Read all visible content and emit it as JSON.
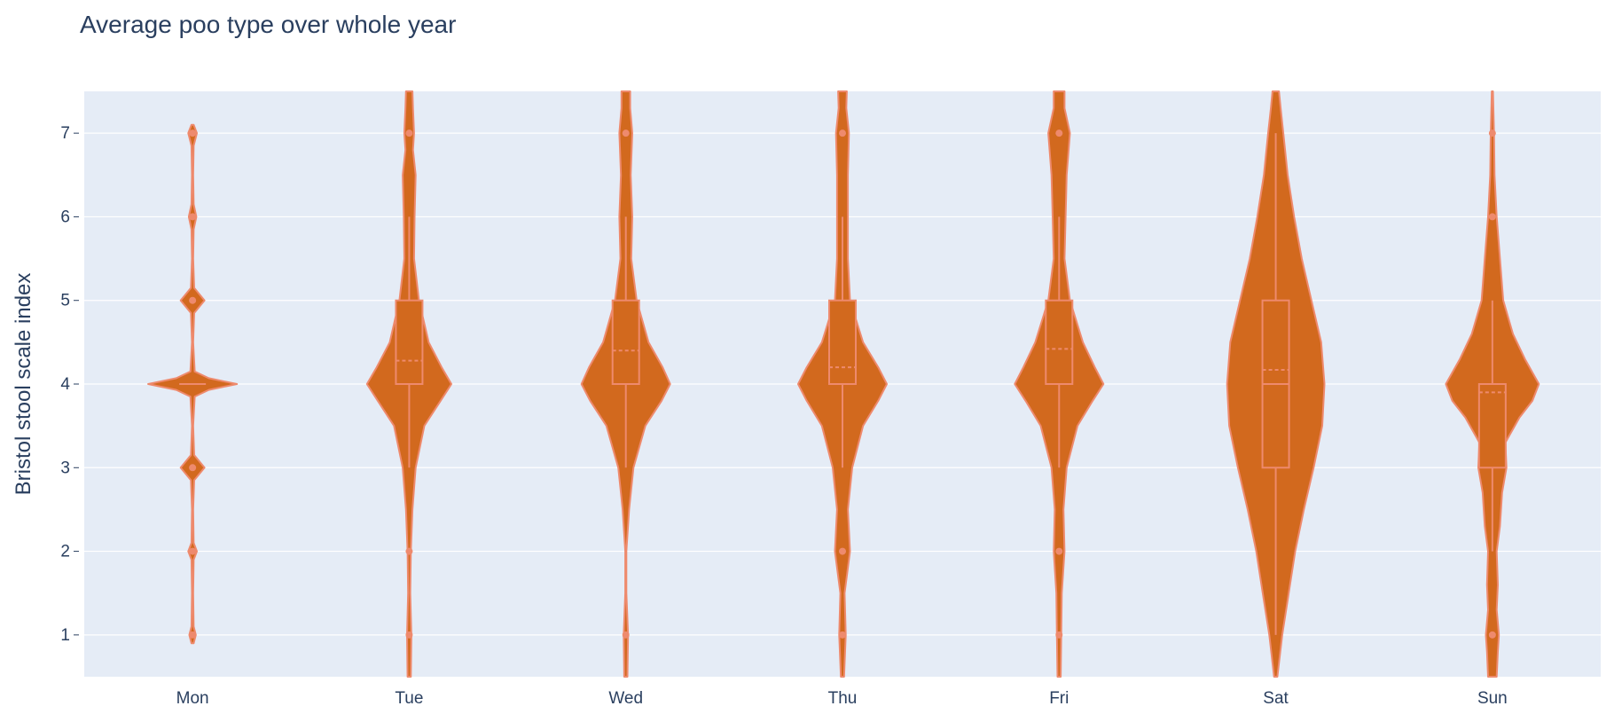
{
  "chart_data": {
    "type": "violin",
    "title": "Average poo type over whole year",
    "xlabel": "",
    "ylabel": "Bristol stool scale index",
    "categories": [
      "Mon",
      "Tue",
      "Wed",
      "Thu",
      "Fri",
      "Sat",
      "Sun"
    ],
    "ylim": [
      0.5,
      7.5
    ],
    "yticks": [
      1,
      2,
      3,
      4,
      5,
      6,
      7
    ],
    "grid": true,
    "colors": {
      "plot_bg": "#e5ecf6",
      "grid": "#ffffff",
      "violin_fill": "#d2691e",
      "violin_line": "#ee8a6d",
      "text": "#2a3f5f"
    },
    "violins": [
      {
        "name": "Mon",
        "y_range": [
          0.9,
          7.1
        ],
        "box": {
          "q1": 4,
          "median": 4,
          "q3": 4,
          "mean": 4.0,
          "whisker_low": 4,
          "whisker_high": 4
        },
        "outliers": [
          1,
          2,
          3,
          5,
          6,
          7
        ],
        "density": [
          [
            0.9,
            0.02
          ],
          [
            1.0,
            0.06
          ],
          [
            1.1,
            0.02
          ],
          [
            1.5,
            0.01
          ],
          [
            1.9,
            0.02
          ],
          [
            2.0,
            0.08
          ],
          [
            2.1,
            0.02
          ],
          [
            2.5,
            0.01
          ],
          [
            2.85,
            0.03
          ],
          [
            3.0,
            0.22
          ],
          [
            3.15,
            0.03
          ],
          [
            3.5,
            0.01
          ],
          [
            3.85,
            0.04
          ],
          [
            3.93,
            0.3
          ],
          [
            4.0,
            0.82
          ],
          [
            4.07,
            0.3
          ],
          [
            4.15,
            0.04
          ],
          [
            4.5,
            0.01
          ],
          [
            4.85,
            0.03
          ],
          [
            5.0,
            0.22
          ],
          [
            5.15,
            0.03
          ],
          [
            5.5,
            0.01
          ],
          [
            5.85,
            0.02
          ],
          [
            6.0,
            0.07
          ],
          [
            6.15,
            0.02
          ],
          [
            6.5,
            0.01
          ],
          [
            6.85,
            0.02
          ],
          [
            7.0,
            0.08
          ],
          [
            7.1,
            0.02
          ]
        ]
      },
      {
        "name": "Tue",
        "y_range": [
          0.5,
          7.5
        ],
        "box": {
          "q1": 4,
          "median": 4,
          "q3": 5,
          "mean": 4.28,
          "whisker_low": 3,
          "whisker_high": 6
        },
        "outliers": [
          1,
          2,
          7
        ],
        "density": [
          [
            0.5,
            0.03
          ],
          [
            1.0,
            0.04
          ],
          [
            1.5,
            0.02
          ],
          [
            2.0,
            0.03
          ],
          [
            2.5,
            0.06
          ],
          [
            3.0,
            0.12
          ],
          [
            3.5,
            0.28
          ],
          [
            3.8,
            0.58
          ],
          [
            4.0,
            0.78
          ],
          [
            4.2,
            0.6
          ],
          [
            4.5,
            0.36
          ],
          [
            5.0,
            0.18
          ],
          [
            5.5,
            0.09
          ],
          [
            6.0,
            0.1
          ],
          [
            6.5,
            0.12
          ],
          [
            6.8,
            0.07
          ],
          [
            7.0,
            0.09
          ],
          [
            7.3,
            0.07
          ],
          [
            7.5,
            0.06
          ]
        ]
      },
      {
        "name": "Wed",
        "y_range": [
          0.5,
          7.5
        ],
        "box": {
          "q1": 4,
          "median": 4,
          "q3": 5,
          "mean": 4.4,
          "whisker_low": 3,
          "whisker_high": 6
        },
        "outliers": [
          1,
          7
        ],
        "density": [
          [
            0.5,
            0.03
          ],
          [
            1.0,
            0.04
          ],
          [
            1.5,
            0.01
          ],
          [
            2.0,
            0.01
          ],
          [
            2.5,
            0.06
          ],
          [
            3.0,
            0.14
          ],
          [
            3.5,
            0.36
          ],
          [
            3.8,
            0.66
          ],
          [
            4.0,
            0.82
          ],
          [
            4.2,
            0.68
          ],
          [
            4.5,
            0.42
          ],
          [
            5.0,
            0.2
          ],
          [
            5.5,
            0.1
          ],
          [
            6.0,
            0.12
          ],
          [
            6.5,
            0.09
          ],
          [
            7.0,
            0.12
          ],
          [
            7.3,
            0.08
          ],
          [
            7.5,
            0.08
          ]
        ]
      },
      {
        "name": "Thu",
        "y_range": [
          0.5,
          7.5
        ],
        "box": {
          "q1": 4,
          "median": 4,
          "q3": 5,
          "mean": 4.2,
          "whisker_low": 3,
          "whisker_high": 6
        },
        "outliers": [
          1,
          2,
          7
        ],
        "density": [
          [
            0.5,
            0.03
          ],
          [
            1.0,
            0.06
          ],
          [
            1.5,
            0.04
          ],
          [
            2.0,
            0.14
          ],
          [
            2.5,
            0.1
          ],
          [
            3.0,
            0.18
          ],
          [
            3.5,
            0.38
          ],
          [
            3.8,
            0.66
          ],
          [
            4.0,
            0.82
          ],
          [
            4.2,
            0.66
          ],
          [
            4.5,
            0.38
          ],
          [
            5.0,
            0.14
          ],
          [
            5.5,
            0.1
          ],
          [
            6.0,
            0.1
          ],
          [
            6.5,
            0.1
          ],
          [
            7.0,
            0.12
          ],
          [
            7.3,
            0.07
          ],
          [
            7.5,
            0.08
          ]
        ]
      },
      {
        "name": "Fri",
        "y_range": [
          0.5,
          7.5
        ],
        "box": {
          "q1": 4,
          "median": 4,
          "q3": 5,
          "mean": 4.42,
          "whisker_low": 3,
          "whisker_high": 6
        },
        "outliers": [
          1,
          2,
          7
        ],
        "density": [
          [
            0.5,
            0.03
          ],
          [
            1.0,
            0.04
          ],
          [
            1.5,
            0.05
          ],
          [
            2.0,
            0.1
          ],
          [
            2.5,
            0.08
          ],
          [
            3.0,
            0.14
          ],
          [
            3.5,
            0.34
          ],
          [
            3.8,
            0.62
          ],
          [
            4.0,
            0.82
          ],
          [
            4.2,
            0.66
          ],
          [
            4.5,
            0.44
          ],
          [
            5.0,
            0.2
          ],
          [
            5.5,
            0.1
          ],
          [
            6.0,
            0.12
          ],
          [
            6.5,
            0.14
          ],
          [
            7.0,
            0.2
          ],
          [
            7.3,
            0.1
          ],
          [
            7.5,
            0.1
          ]
        ]
      },
      {
        "name": "Sat",
        "y_range": [
          0.5,
          7.5
        ],
        "box": {
          "q1": 3,
          "median": 4,
          "q3": 5,
          "mean": 4.17,
          "whisker_low": 1,
          "whisker_high": 7
        },
        "outliers": [],
        "density": [
          [
            0.5,
            0.03
          ],
          [
            1.0,
            0.12
          ],
          [
            1.5,
            0.24
          ],
          [
            2.0,
            0.36
          ],
          [
            2.5,
            0.52
          ],
          [
            3.0,
            0.7
          ],
          [
            3.5,
            0.86
          ],
          [
            4.0,
            0.9
          ],
          [
            4.5,
            0.84
          ],
          [
            5.0,
            0.66
          ],
          [
            5.5,
            0.48
          ],
          [
            6.0,
            0.34
          ],
          [
            6.5,
            0.22
          ],
          [
            7.0,
            0.14
          ],
          [
            7.3,
            0.09
          ],
          [
            7.5,
            0.06
          ]
        ]
      },
      {
        "name": "Sun",
        "y_range": [
          0.5,
          7.5
        ],
        "box": {
          "q1": 3,
          "median": 4,
          "q3": 4,
          "mean": 3.9,
          "whisker_low": 2,
          "whisker_high": 5
        },
        "outliers": [
          1,
          6,
          7
        ],
        "density": [
          [
            0.5,
            0.08
          ],
          [
            0.8,
            0.1
          ],
          [
            1.0,
            0.12
          ],
          [
            1.3,
            0.08
          ],
          [
            1.6,
            0.1
          ],
          [
            2.0,
            0.08
          ],
          [
            2.3,
            0.14
          ],
          [
            2.7,
            0.18
          ],
          [
            3.0,
            0.26
          ],
          [
            3.3,
            0.24
          ],
          [
            3.6,
            0.5
          ],
          [
            3.8,
            0.74
          ],
          [
            4.0,
            0.86
          ],
          [
            4.3,
            0.6
          ],
          [
            4.6,
            0.38
          ],
          [
            5.0,
            0.2
          ],
          [
            5.5,
            0.14
          ],
          [
            6.0,
            0.08
          ],
          [
            6.5,
            0.04
          ],
          [
            7.0,
            0.03
          ],
          [
            7.5,
            0.01
          ]
        ]
      }
    ]
  }
}
